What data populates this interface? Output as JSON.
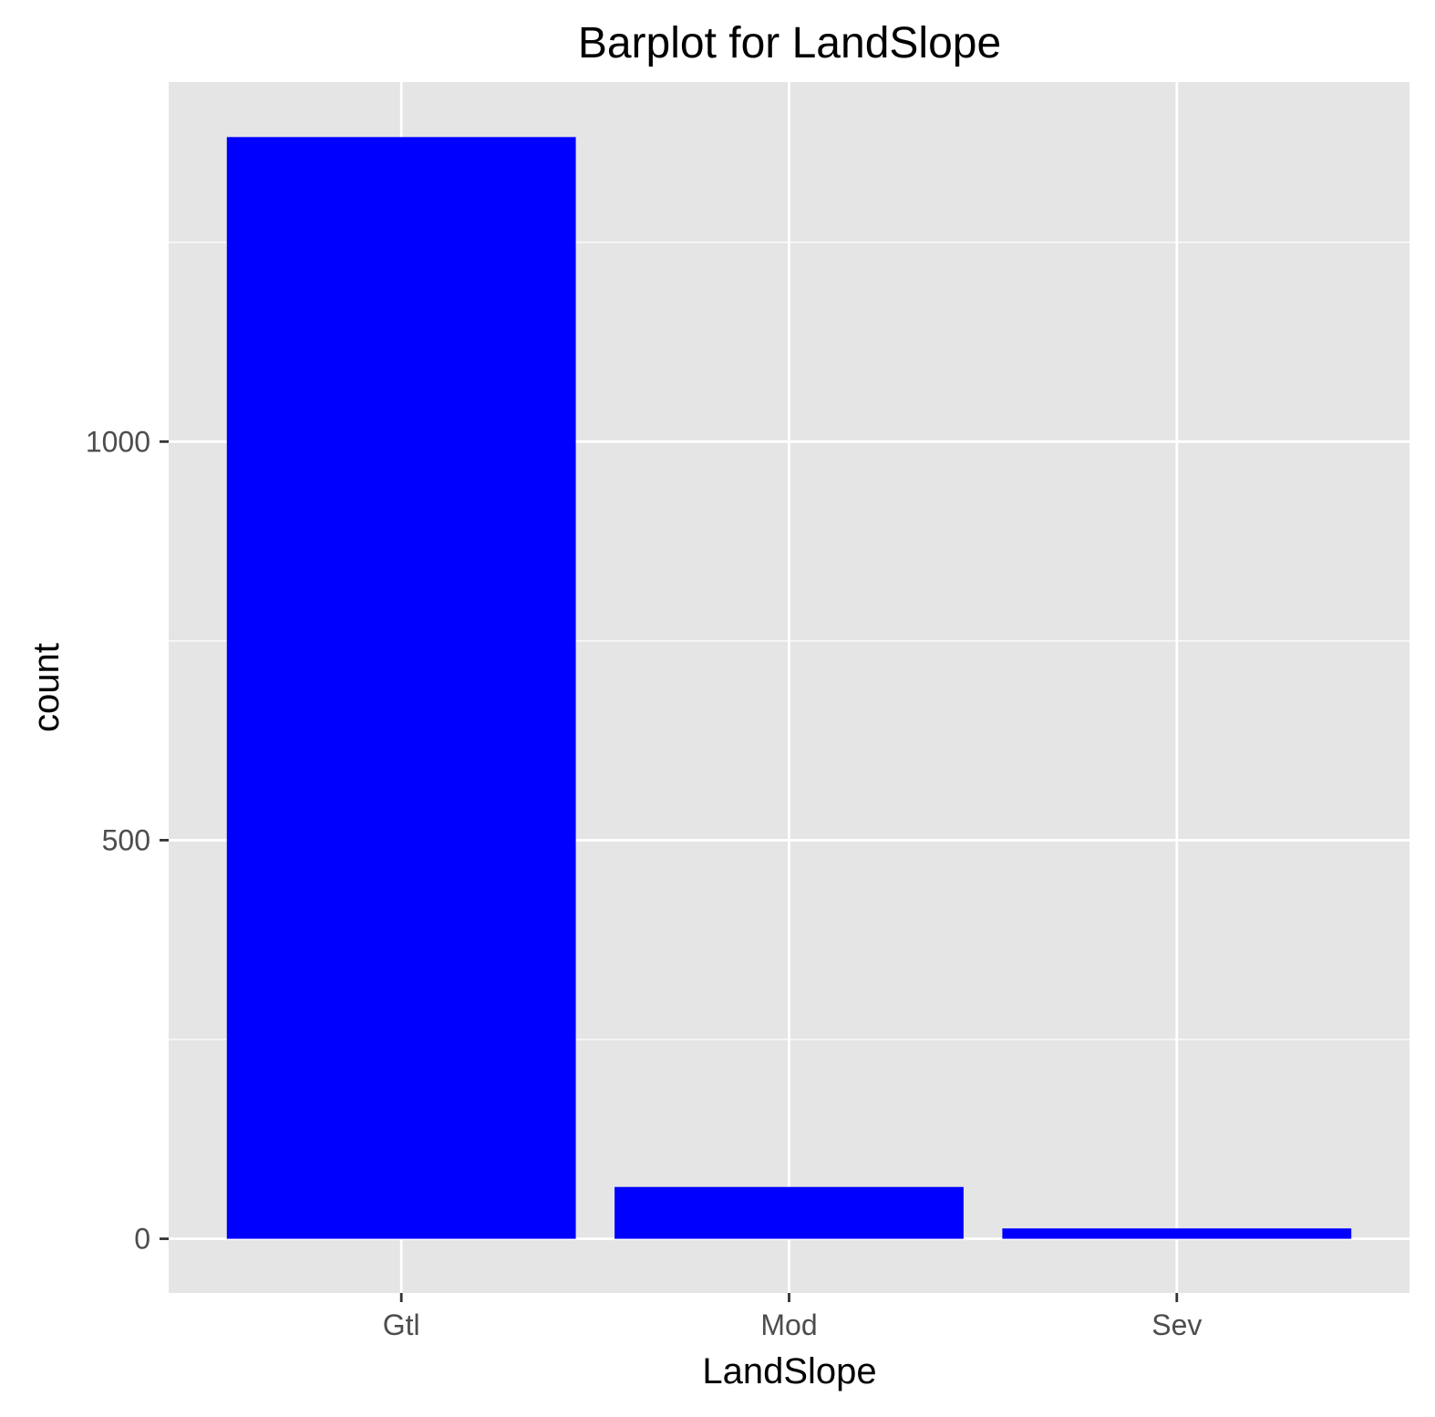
{
  "chart_data": {
    "type": "bar",
    "title": "Barplot for LandSlope",
    "xlabel": "LandSlope",
    "ylabel": "count",
    "categories": [
      "Gtl",
      "Mod",
      "Sev"
    ],
    "values": [
      1382,
      65,
      13
    ],
    "ylim": [
      -68,
      1451
    ],
    "yticks": [
      0,
      500,
      1000
    ],
    "grid": true,
    "legend": "none",
    "colors": {
      "bar": "#0000ff",
      "panel_background": "#e5e5e5",
      "grid": "#ffffff",
      "tick_mark": "#333333"
    }
  }
}
